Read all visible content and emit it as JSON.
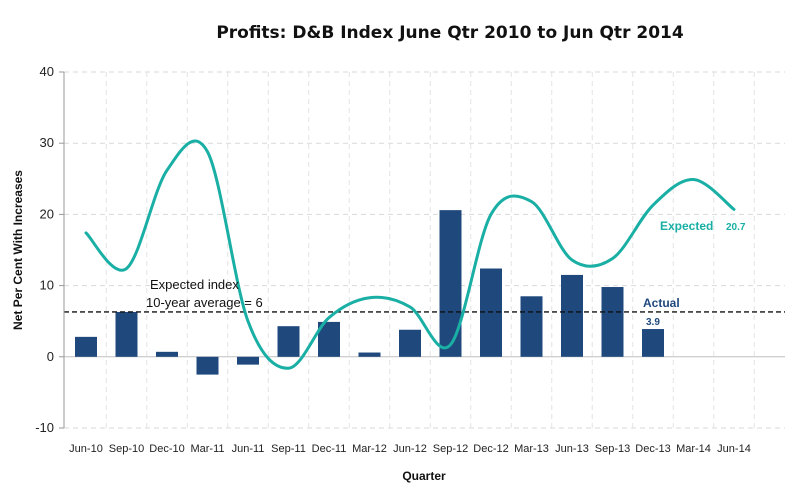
{
  "chart_data": {
    "type": "bar",
    "title": "Profits: D&B Index June Qtr 2010 to Jun Qtr 2014",
    "xlabel": "Quarter",
    "ylabel": "Net Per Cent With Increases",
    "ylim": [
      -10,
      40
    ],
    "yticks": [
      -10,
      0,
      10,
      20,
      30,
      40
    ],
    "grid": true,
    "categories": [
      "Jun-10",
      "Sep-10",
      "Dec-10",
      "Mar-11",
      "Jun-11",
      "Sep-11",
      "Dec-11",
      "Mar-12",
      "Jun-12",
      "Sep-12",
      "Dec-12",
      "Mar-13",
      "Jun-13",
      "Sep-13",
      "Dec-13",
      "Mar-14",
      "Jun-14"
    ],
    "series": [
      {
        "name": "Actual",
        "type": "bar",
        "color": "#1f497d",
        "values": [
          2.8,
          6.3,
          0.7,
          -2.5,
          -1.1,
          4.3,
          4.9,
          0.6,
          3.8,
          20.6,
          12.4,
          8.5,
          11.5,
          9.8,
          3.9,
          null,
          null
        ]
      },
      {
        "name": "Expected",
        "type": "line",
        "color": "#1aafa5",
        "values": [
          17.4,
          12.4,
          26.2,
          28.8,
          5.0,
          -1.6,
          5.5,
          8.3,
          7.0,
          1.7,
          20.0,
          21.8,
          13.6,
          13.8,
          21.3,
          24.9,
          20.7
        ]
      }
    ],
    "reference_line": {
      "value": 6.3,
      "style": "dashed",
      "color": "#111111"
    },
    "annotations": {
      "reference_line_1": "Expected index",
      "reference_line_2": "10-year average = 6",
      "expected_label": "Expected",
      "expected_value": "20.7",
      "actual_label": "Actual",
      "actual_value": "3.9"
    }
  }
}
